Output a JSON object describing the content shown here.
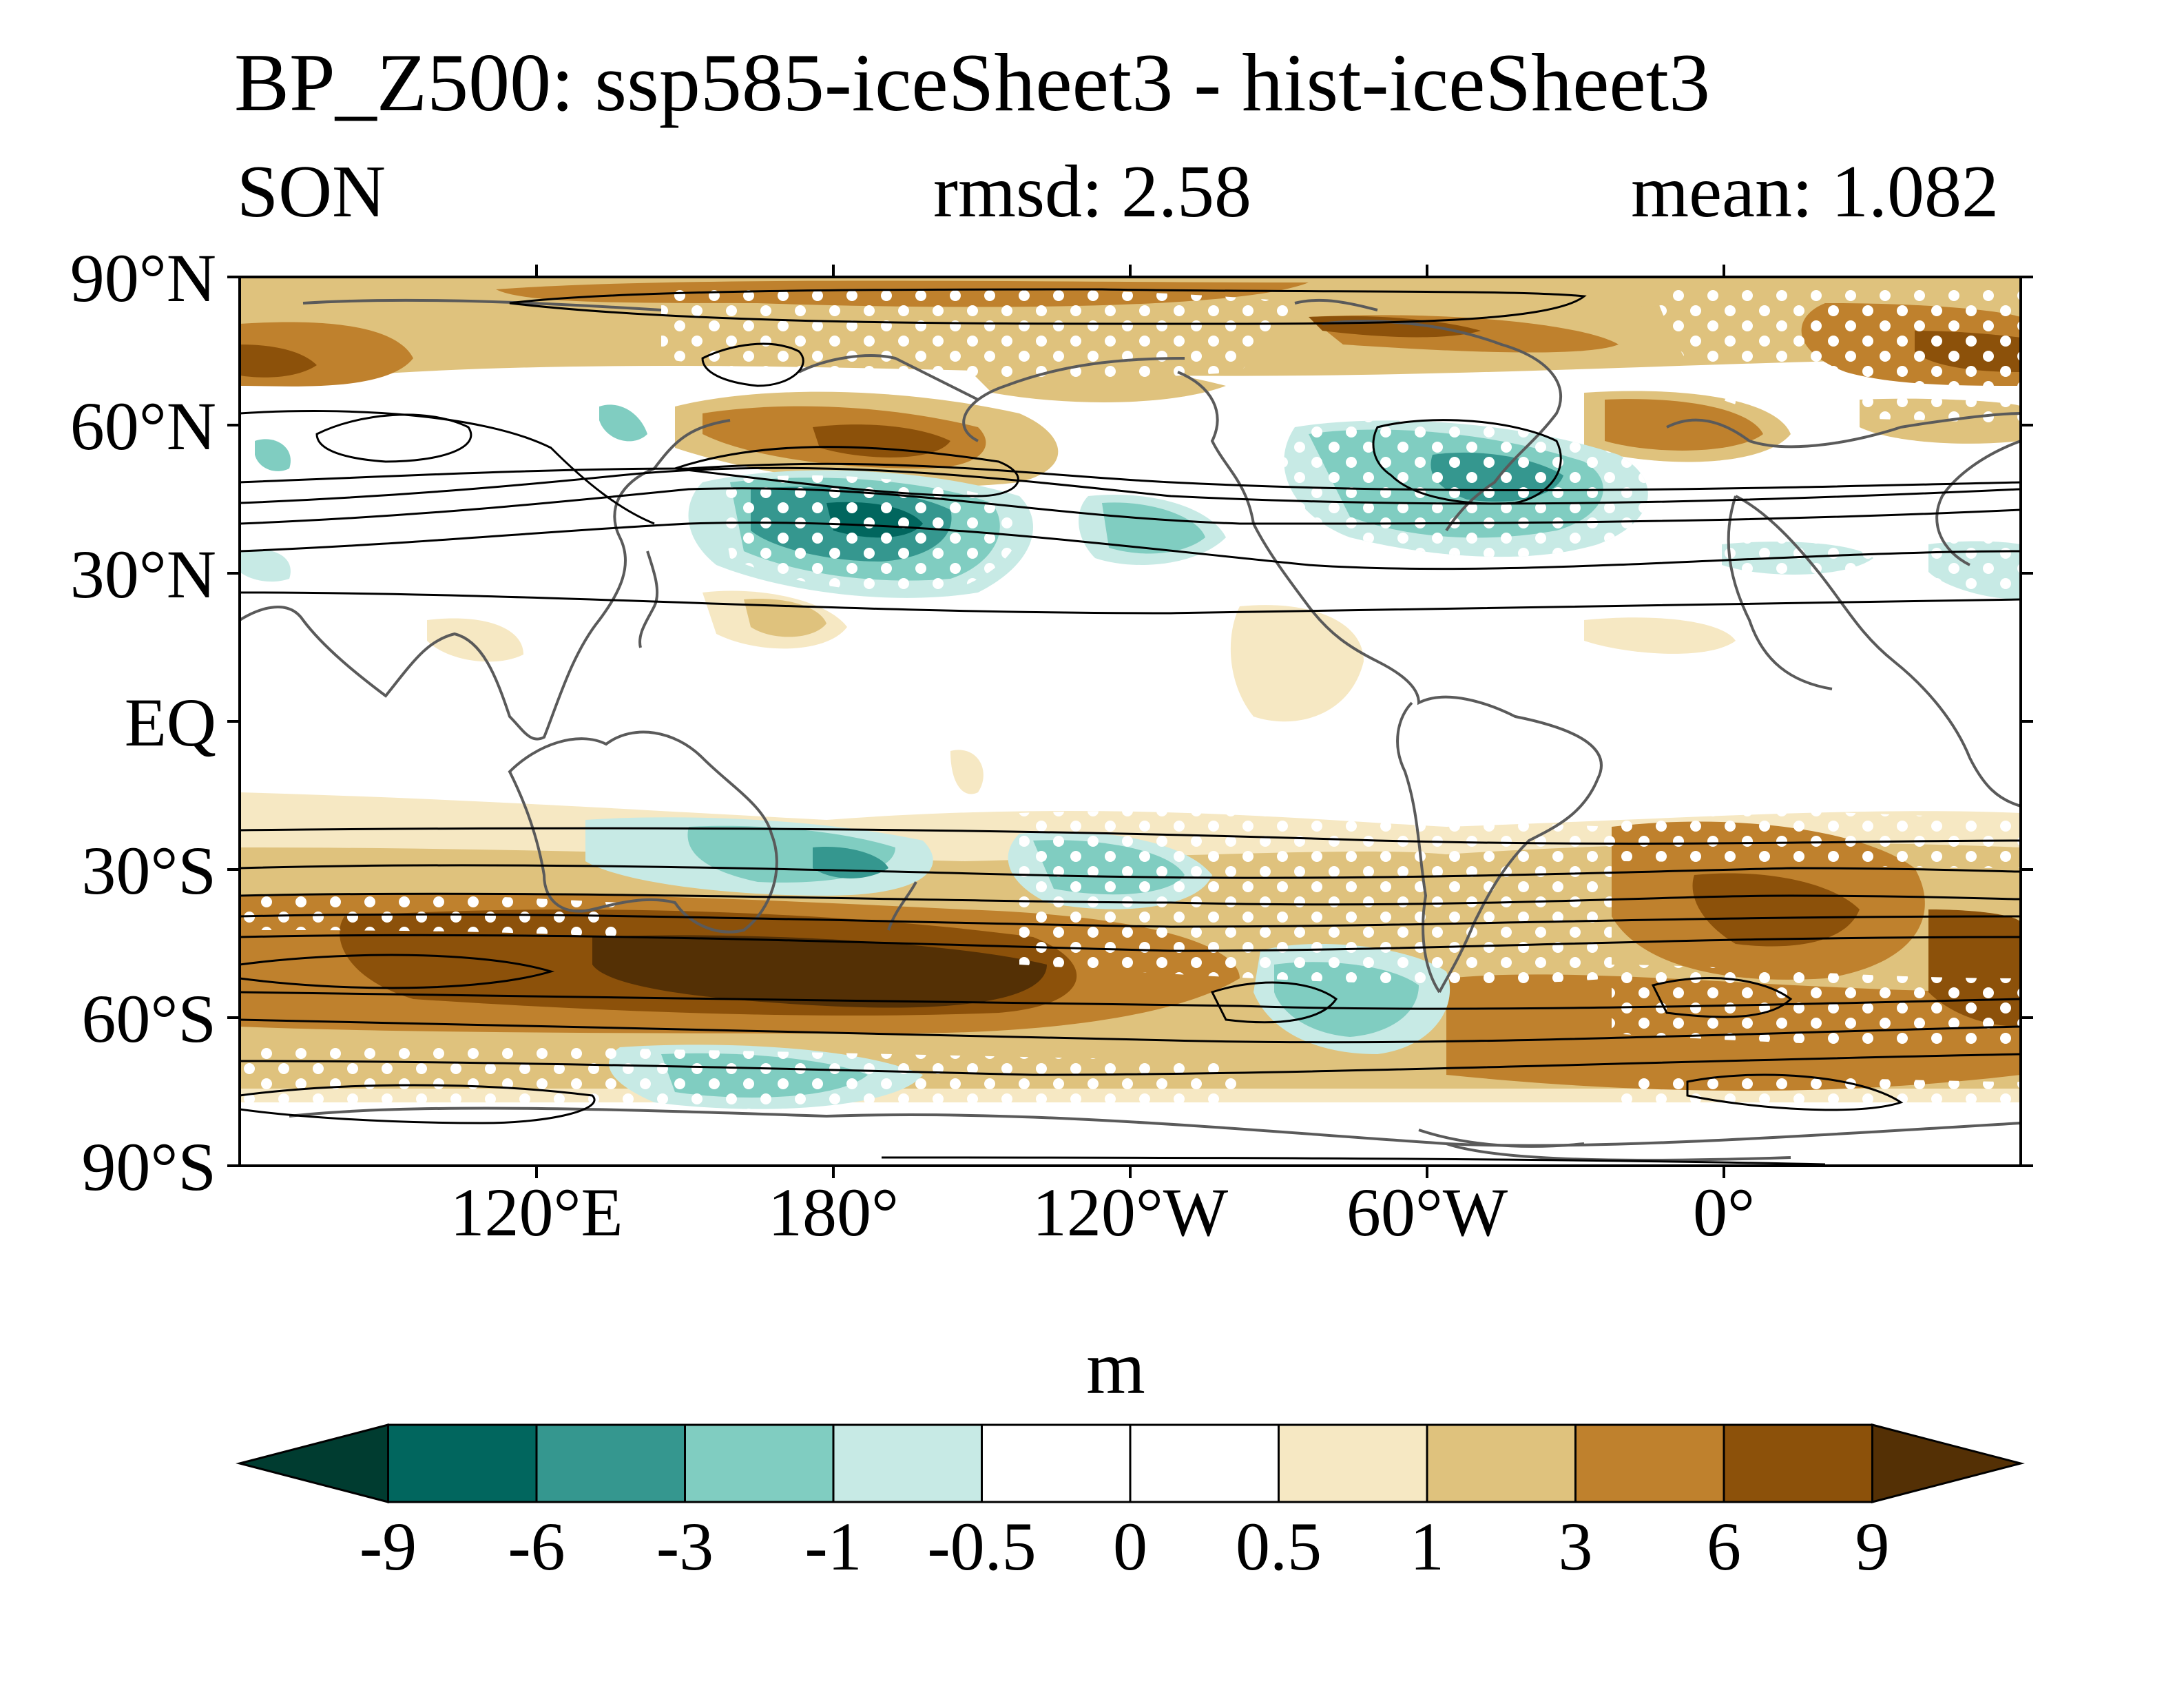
{
  "title": "BP_Z500: ssp585-iceSheet3 - hist-iceSheet3",
  "subtitle": {
    "left": "SON",
    "middle": "rmsd: 2.58",
    "right": "mean: 1.082"
  },
  "map": {
    "projection": "cylindrical equidistant",
    "lon_range": [
      60,
      420
    ],
    "lat_range": [
      -90,
      90
    ],
    "lat_ticks": [
      {
        "lat": 90,
        "label": "90°N"
      },
      {
        "lat": 60,
        "label": "60°N"
      },
      {
        "lat": 30,
        "label": "30°N"
      },
      {
        "lat": 0,
        "label": "EQ"
      },
      {
        "lat": -30,
        "label": "30°S"
      },
      {
        "lat": -60,
        "label": "60°S"
      },
      {
        "lat": -90,
        "label": "90°S"
      }
    ],
    "lon_ticks": [
      {
        "lon": 120,
        "label": "120°E"
      },
      {
        "lon": 180,
        "label": "180°"
      },
      {
        "lon": 240,
        "label": "120°W"
      },
      {
        "lon": 300,
        "label": "60°W"
      },
      {
        "lon": 360,
        "label": "0°"
      }
    ],
    "stippling": "white dots mark significant regions",
    "coastline_color": "#5a5a5a",
    "contour_color": "#000000"
  },
  "colorbar": {
    "units": "m",
    "levels": [
      "-9",
      "-6",
      "-3",
      "-1",
      "-0.5",
      "0",
      "0.5",
      "1",
      "3",
      "6",
      "9"
    ],
    "colors": [
      "#003c30",
      "#01665e",
      "#35978f",
      "#80cdc1",
      "#c7eae5",
      "#ffffff",
      "#ffffff",
      "#f6e8c3",
      "#dfc27d",
      "#bf812d",
      "#8c510a",
      "#543005"
    ]
  }
}
